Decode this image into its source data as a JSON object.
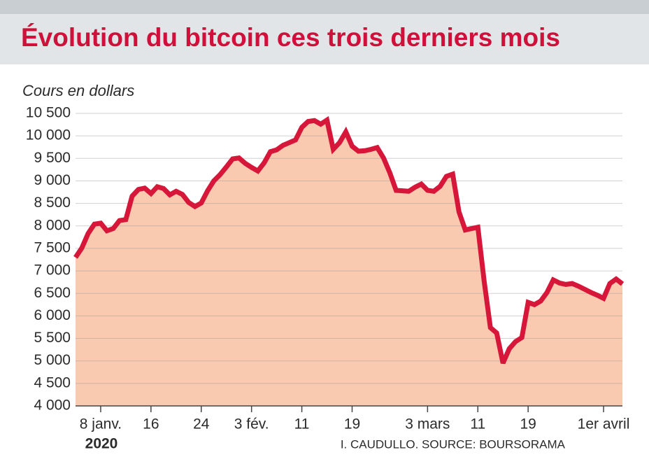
{
  "chart_data": {
    "type": "line",
    "title": "Évolution du bitcoin ces trois derniers mois",
    "y_label": "Cours en dollars",
    "year": "2020",
    "source": "I. CAUDULLO. SOURCE: BOURSORAMA",
    "color": "#d6173a",
    "area_color": "#f9c9b0",
    "grid": true,
    "categories": [
      null,
      null,
      null,
      null,
      "8 janv.",
      null,
      null,
      null,
      null,
      null,
      null,
      null,
      "16",
      null,
      null,
      null,
      null,
      null,
      null,
      null,
      "24",
      null,
      null,
      null,
      null,
      null,
      null,
      null,
      "3 fév.",
      null,
      null,
      null,
      null,
      null,
      null,
      null,
      "11",
      null,
      null,
      null,
      null,
      null,
      null,
      null,
      "19",
      null,
      null,
      null,
      null,
      null,
      null,
      null,
      null,
      null,
      null,
      null,
      "3 mars",
      null,
      null,
      null,
      null,
      null,
      null,
      null,
      "11",
      null,
      null,
      null,
      null,
      null,
      null,
      null,
      "19",
      null,
      null,
      null,
      null,
      null,
      null,
      null,
      null,
      null,
      null,
      null,
      "1er avril",
      null,
      null,
      null
    ],
    "values": [
      7300,
      7510,
      7830,
      8040,
      8060,
      7890,
      7940,
      8120,
      8140,
      8660,
      8810,
      8840,
      8720,
      8870,
      8830,
      8690,
      8770,
      8700,
      8520,
      8430,
      8510,
      8780,
      9000,
      9140,
      9310,
      9490,
      9510,
      9390,
      9300,
      9220,
      9400,
      9650,
      9690,
      9790,
      9850,
      9910,
      10190,
      10320,
      10340,
      10260,
      10350,
      9700,
      9850,
      10090,
      9770,
      9660,
      9670,
      9700,
      9740,
      9510,
      9180,
      8790,
      8780,
      8770,
      8860,
      8930,
      8790,
      8770,
      8880,
      9100,
      9150,
      8310,
      7910,
      7940,
      7970,
      6770,
      5740,
      5620,
      4950,
      5270,
      5430,
      5520,
      6300,
      6250,
      6330,
      6520,
      6800,
      6730,
      6700,
      6720,
      6660,
      6590,
      6520,
      6460,
      6390,
      6720,
      6820,
      6710
    ],
    "ylim": [
      4000,
      10500
    ],
    "yticks": [
      {
        "value": 4000,
        "label": "4 000"
      },
      {
        "value": 4500,
        "label": "4 500"
      },
      {
        "value": 5000,
        "label": "5 000"
      },
      {
        "value": 5500,
        "label": "5 500"
      },
      {
        "value": 6000,
        "label": "6 000"
      },
      {
        "value": 6500,
        "label": "6 500"
      },
      {
        "value": 7000,
        "label": "7 000"
      },
      {
        "value": 7500,
        "label": "7 500"
      },
      {
        "value": 8000,
        "label": "8 000"
      },
      {
        "value": 8500,
        "label": "8 500"
      },
      {
        "value": 9000,
        "label": "9 000"
      },
      {
        "value": 9500,
        "label": "9 500"
      },
      {
        "value": 10000,
        "label": "10 000"
      },
      {
        "value": 10500,
        "label": "10 500"
      }
    ]
  }
}
